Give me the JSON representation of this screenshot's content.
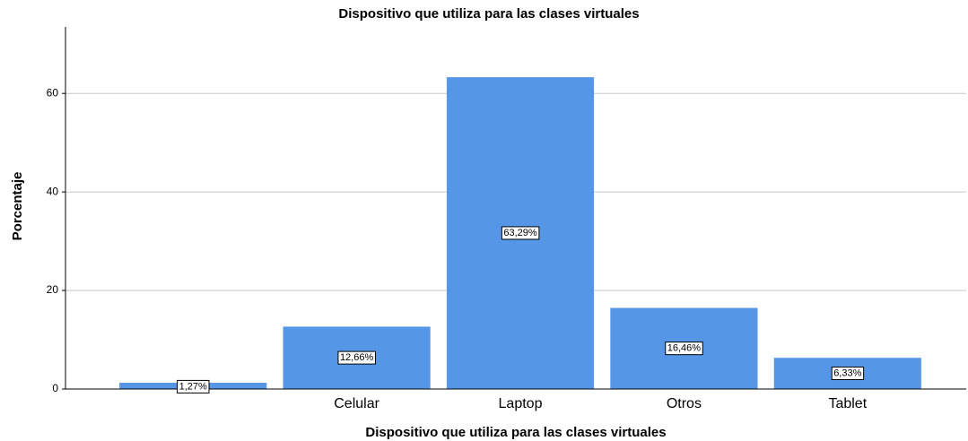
{
  "chart_data": {
    "type": "bar",
    "title": "Dispositivo que utiliza para las clases virtuales",
    "x_label": "Dispositivo que utiliza para las clases virtuales",
    "y_label": "Porcentaje",
    "categories": [
      null,
      "Celular",
      "Laptop",
      "Otros",
      "Tablet"
    ],
    "values": [
      1.27,
      12.66,
      63.29,
      16.46,
      6.33
    ],
    "value_labels": [
      "1,27%",
      "12,66%",
      "63,29%",
      "16,46%",
      "6,33%"
    ],
    "color": "#5596e6",
    "ylim": [
      0,
      73.5
    ],
    "yticks": [
      0,
      20,
      40,
      60
    ],
    "grid": true
  }
}
